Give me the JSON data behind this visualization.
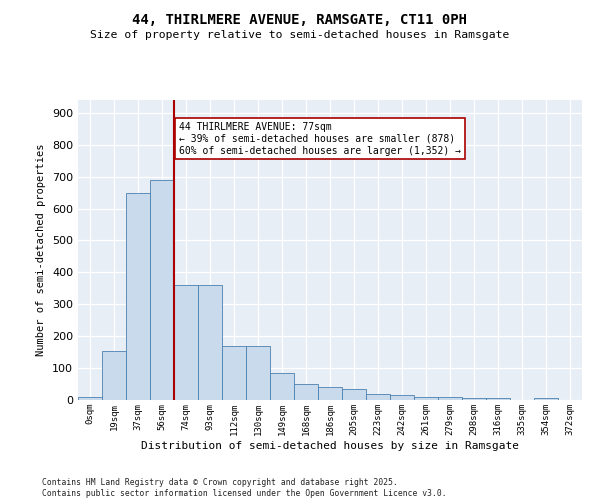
{
  "title1": "44, THIRLMERE AVENUE, RAMSGATE, CT11 0PH",
  "title2": "Size of property relative to semi-detached houses in Ramsgate",
  "xlabel": "Distribution of semi-detached houses by size in Ramsgate",
  "ylabel": "Number of semi-detached properties",
  "bin_labels": [
    "0sqm",
    "19sqm",
    "37sqm",
    "56sqm",
    "74sqm",
    "93sqm",
    "112sqm",
    "130sqm",
    "149sqm",
    "168sqm",
    "186sqm",
    "205sqm",
    "223sqm",
    "242sqm",
    "261sqm",
    "279sqm",
    "298sqm",
    "316sqm",
    "335sqm",
    "354sqm",
    "372sqm"
  ],
  "values": [
    10,
    155,
    650,
    690,
    360,
    360,
    170,
    170,
    85,
    50,
    42,
    35,
    18,
    15,
    10,
    10,
    5,
    5,
    0,
    5,
    0
  ],
  "bar_color": "#c8daec",
  "bar_edge_color": "#4a80b0",
  "vline_position": 3.5,
  "vline_color": "#aa0000",
  "annotation_text": "44 THIRLMERE AVENUE: 77sqm\n← 39% of semi-detached houses are smaller (878)\n60% of semi-detached houses are larger (1,352) →",
  "ylim": [
    0,
    940
  ],
  "yticks": [
    0,
    100,
    200,
    300,
    400,
    500,
    600,
    700,
    800,
    900
  ],
  "footer_line1": "Contains HM Land Registry data © Crown copyright and database right 2025.",
  "footer_line2": "Contains public sector information licensed under the Open Government Licence v3.0.",
  "bg_color": "#e8eef5"
}
